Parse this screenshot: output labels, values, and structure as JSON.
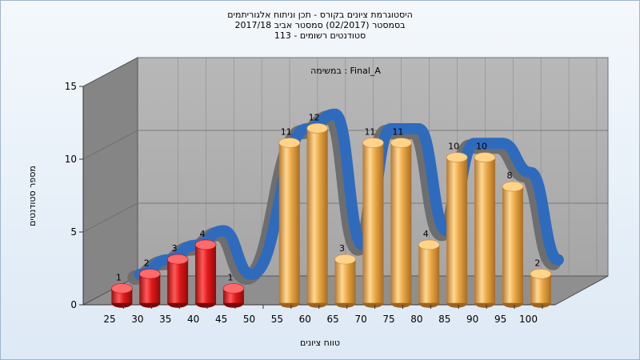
{
  "chart_data": {
    "type": "bar",
    "title": "היסטוגרמת ציונים בקורס - תכן וניתוח אלגוריתמים",
    "subtitle_1": "בסמסטר  (02/2017)  סמסטר אביב 2017/18",
    "subtitle_2": "סטודנטים רשומים - 113",
    "annotation": "במשימה : Final_A",
    "xlabel": "טווח ציונים",
    "ylabel": "מספר סטודנטים",
    "ylim": [
      0,
      15
    ],
    "yticks": [
      "0",
      "5",
      "10",
      "15"
    ],
    "categories": [
      "25",
      "30",
      "35",
      "40",
      "45",
      "50",
      "55",
      "60",
      "65",
      "70",
      "75",
      "80",
      "85",
      "90",
      "95",
      "100"
    ],
    "values": [
      1,
      2,
      3,
      4,
      1,
      null,
      11,
      12,
      3,
      11,
      11,
      4,
      10,
      10,
      8,
      2
    ],
    "value_labels": [
      "1",
      "2",
      "3",
      "4",
      "1",
      "",
      "11",
      "12",
      "3",
      "11",
      "11",
      "4",
      "10",
      "10",
      "8",
      "2"
    ],
    "colors": {
      "failing_bar": "#e01818",
      "passing_bar": "#e9a743",
      "curve": "#2f6bbd",
      "wall": "#b4b4b4",
      "side_wall": "#8a8a8a"
    },
    "fail_threshold": 50
  }
}
